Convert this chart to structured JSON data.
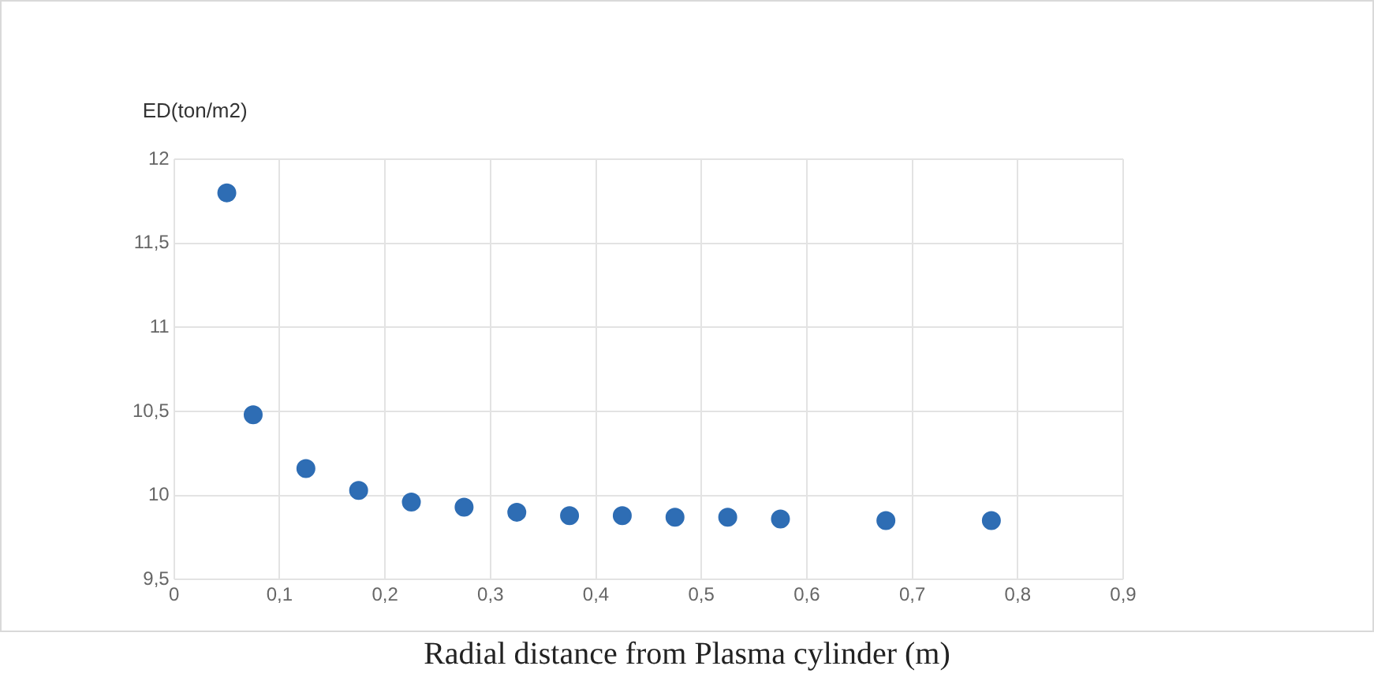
{
  "chart_data": {
    "type": "scatter",
    "ylabel": "ED(ton/m2)",
    "xlabel": "Radial distance from Plasma cylinder (m)",
    "x": [
      0.05,
      0.075,
      0.125,
      0.175,
      0.225,
      0.275,
      0.325,
      0.375,
      0.425,
      0.475,
      0.525,
      0.575,
      0.675,
      0.775
    ],
    "series": [
      {
        "color": "#2e6db4",
        "values": [
          11.8,
          10.48,
          10.16,
          10.03,
          9.96,
          9.93,
          9.9,
          9.88,
          9.88,
          9.87,
          9.87,
          9.86,
          9.85,
          9.85
        ]
      }
    ],
    "xlim": [
      0,
      0.9
    ],
    "xticks": [
      0,
      {
        "value": 0.1,
        "label": "0,1"
      },
      {
        "value": 0.2,
        "label": "0,2"
      },
      {
        "value": 0.3,
        "label": "0,3"
      },
      {
        "value": 0.4,
        "label": "0,4"
      },
      {
        "value": 0.5,
        "label": "0,5"
      },
      {
        "value": 0.6,
        "label": "0,6"
      },
      {
        "value": 0.7,
        "label": "0,7"
      },
      {
        "value": 0.8,
        "label": "0,8"
      },
      {
        "value": 0.9,
        "label": "0,9"
      }
    ],
    "ylim": [
      9.5,
      12
    ],
    "yticks": [
      {
        "value": 9.5,
        "label": "9,5"
      },
      10,
      {
        "value": 10.5,
        "label": "10,5"
      },
      11,
      {
        "value": 11.5,
        "label": "11,5"
      },
      12
    ],
    "grid": true,
    "marker": "circle"
  }
}
